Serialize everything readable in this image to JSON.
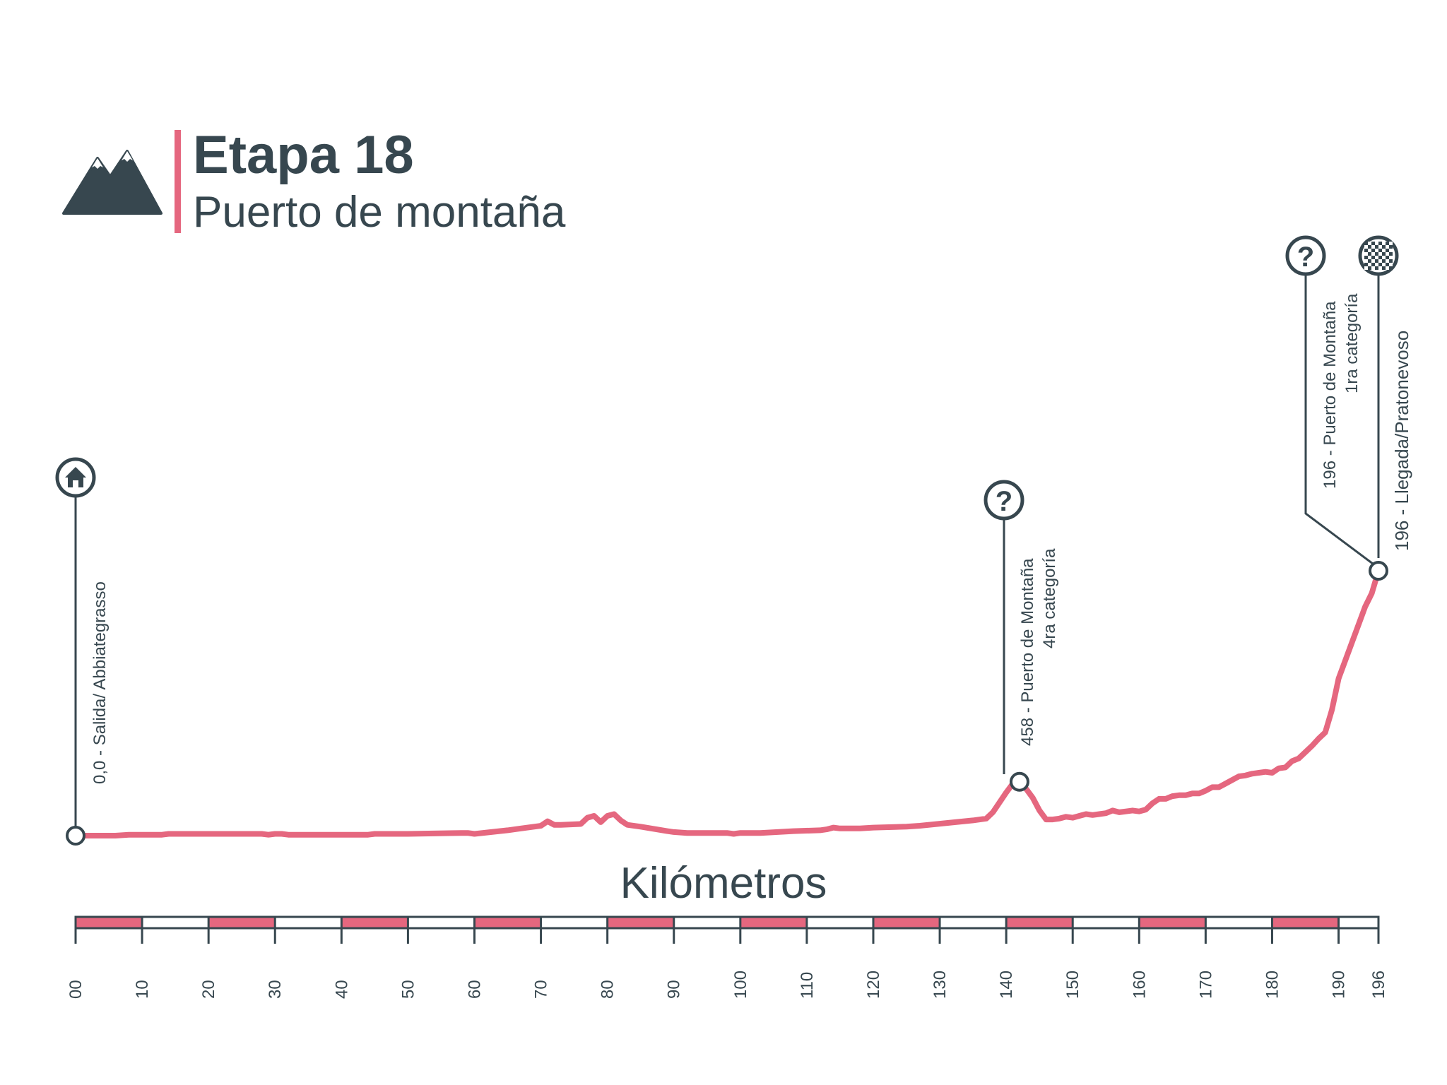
{
  "header": {
    "title": "Etapa 18",
    "subtitle": "Puerto de montaña",
    "icon": "mountain-icon"
  },
  "chart_data": {
    "type": "area",
    "xlabel": "Kilómetros",
    "ylabel": "",
    "title": "Etapa 18",
    "subtitle": "Puerto de montaña",
    "xlim": [
      0,
      196
    ],
    "tick_labels": [
      "00",
      "10",
      "20",
      "30",
      "40",
      "50",
      "60",
      "70",
      "80",
      "90",
      "100",
      "110",
      "120",
      "130",
      "140",
      "150",
      "160",
      "170",
      "180",
      "190",
      "196"
    ],
    "tick_values": [
      0,
      10,
      20,
      30,
      40,
      50,
      60,
      70,
      80,
      90,
      100,
      110,
      120,
      130,
      140,
      150,
      160,
      170,
      180,
      190,
      196
    ],
    "axis_bar_pattern": "alternating pink and white 10 km segments",
    "elevation_note": "relative profile, no vertical scale shown",
    "x": [
      0,
      2,
      6,
      8,
      10,
      11,
      13,
      14,
      16,
      20,
      28,
      29,
      30,
      31,
      32,
      40,
      42,
      44,
      45,
      47,
      50,
      58,
      59,
      60,
      65,
      67,
      70,
      71,
      72,
      73,
      76,
      77,
      78,
      79,
      80,
      81,
      82,
      83,
      85,
      89,
      90,
      92,
      93,
      95,
      98,
      99,
      100,
      101,
      103,
      108,
      112,
      113,
      114,
      115,
      116,
      118,
      120,
      125,
      127,
      135,
      137,
      138,
      140,
      141,
      142,
      143,
      144,
      145,
      146,
      147,
      148,
      149,
      150,
      151,
      152,
      153,
      154,
      155,
      156,
      157,
      158,
      159,
      160,
      161,
      162,
      163,
      164,
      165,
      166,
      167,
      168,
      169,
      170,
      171,
      172,
      173,
      174,
      175,
      176,
      177,
      178,
      179,
      180,
      181,
      182,
      183,
      184,
      185,
      186,
      187,
      188,
      189,
      190,
      191,
      192,
      193,
      194,
      195,
      196
    ],
    "y": [
      0,
      0,
      0,
      1,
      1,
      1,
      1,
      2,
      2,
      2,
      2,
      1,
      2,
      2,
      1,
      1,
      1,
      1,
      2,
      2,
      2,
      3,
      3,
      2,
      6,
      8,
      11,
      16,
      12,
      12,
      13,
      20,
      22,
      15,
      22,
      24,
      17,
      12,
      10,
      5,
      4,
      3,
      3,
      3,
      3,
      2,
      3,
      3,
      3,
      5,
      6,
      7,
      9,
      8,
      8,
      8,
      9,
      10,
      11,
      17,
      19,
      26,
      48,
      58,
      60,
      52,
      42,
      28,
      18,
      18,
      19,
      21,
      20,
      22,
      24,
      23,
      24,
      25,
      28,
      26,
      27,
      28,
      27,
      29,
      36,
      41,
      41,
      44,
      45,
      45,
      47,
      47,
      50,
      54,
      54,
      58,
      62,
      66,
      67,
      69,
      70,
      71,
      70,
      75,
      76,
      83,
      86,
      93,
      100,
      108,
      115,
      140,
      175,
      195,
      215,
      235,
      255,
      270,
      295
    ]
  },
  "start_marker": {
    "icon": "home-icon",
    "label": "0,0 - Salida/ Abbiategrasso"
  },
  "climb_marker": {
    "icon": "question-icon",
    "label_line1": "458 - Puerto de Montaña",
    "label_line2": "4ra categoría"
  },
  "summit_marker": {
    "icon": "question-icon",
    "label_line1": "196 - Puerto de Montaña",
    "label_line2": "1ra categoría"
  },
  "finish_marker": {
    "icon": "checkered-flag-icon",
    "label": "196 - Llegada/Pratonevoso"
  },
  "colors": {
    "profile": "#e5677f",
    "ink": "#37474f",
    "background": "#ffffff"
  }
}
